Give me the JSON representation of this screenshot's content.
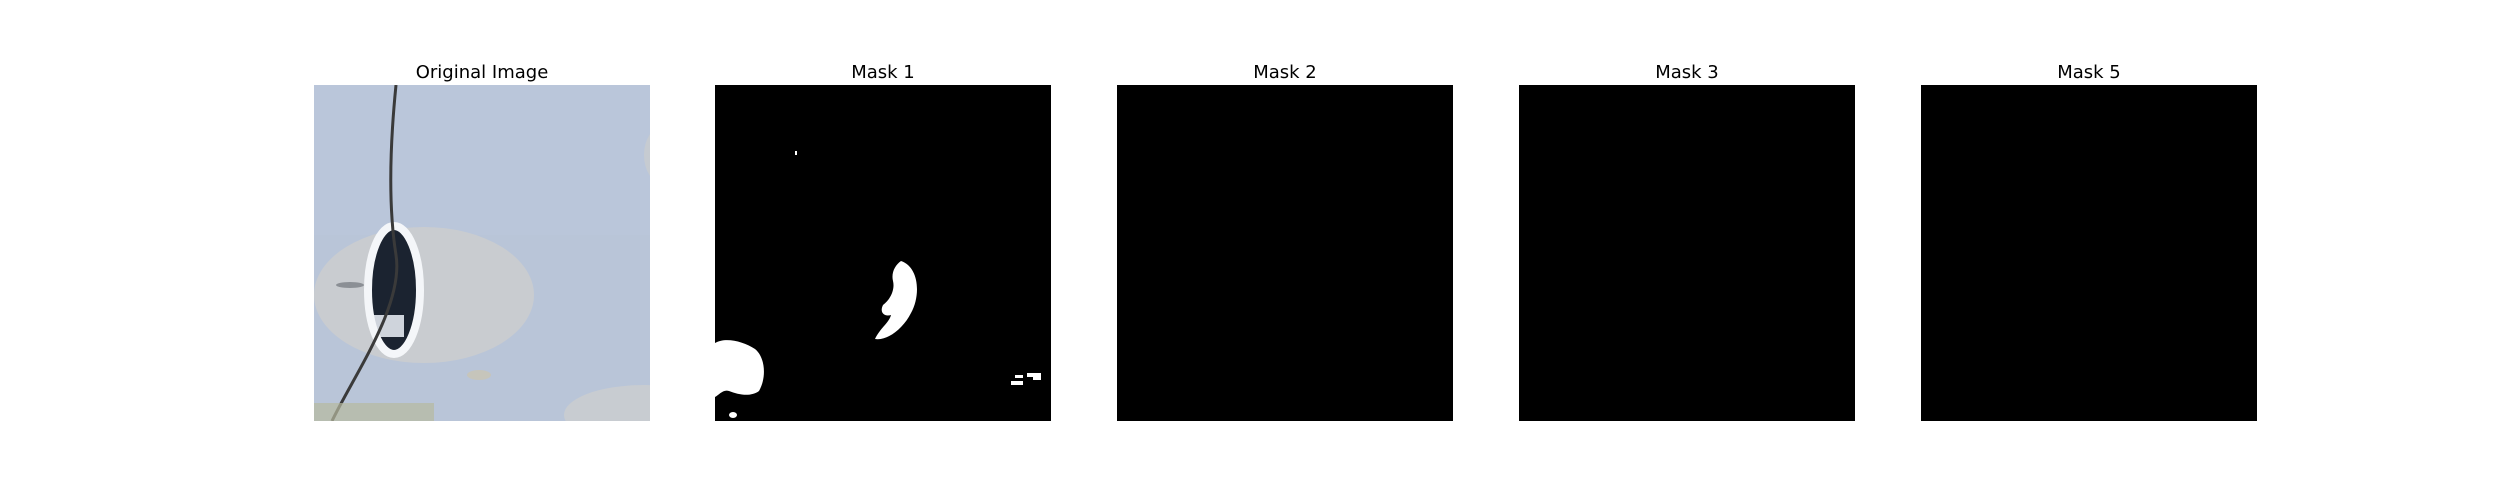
{
  "figure": {
    "panels": [
      {
        "title": "Original Image"
      },
      {
        "title": "Mask 1"
      },
      {
        "title": "Mask 2"
      },
      {
        "title": "Mask 3"
      },
      {
        "title": "Mask 5"
      }
    ]
  },
  "colors": {
    "background": "#ffffff",
    "mask_background": "#000000",
    "mask_foreground": "#ffffff",
    "surface": "#b8c4d8",
    "shadow": "#c8ccd2",
    "crack": "#3a3a3a"
  }
}
